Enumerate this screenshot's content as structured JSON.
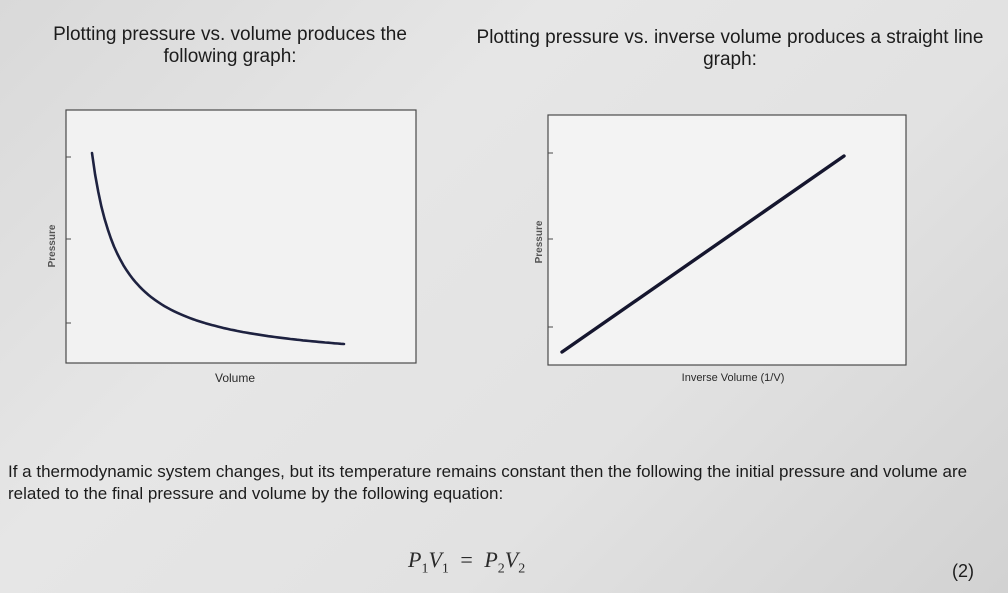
{
  "captions": {
    "left": "Plotting pressure vs. volume produces the following graph:",
    "right": "Plotting pressure vs. inverse volume produces a straight line graph:"
  },
  "chart_data": [
    {
      "type": "line",
      "xlabel": "Volume",
      "ylabel": "Pressure",
      "series": [
        {
          "x": [
            1,
            1.2,
            1.5,
            2,
            2.5,
            3,
            4,
            5,
            6,
            7,
            8,
            9,
            10
          ],
          "y": [
            10,
            8.33,
            6.67,
            5,
            4,
            3.33,
            2.5,
            2,
            1.67,
            1.43,
            1.25,
            1.11,
            1
          ]
        }
      ],
      "grid": false,
      "color": "#1e2240"
    },
    {
      "type": "line",
      "xlabel": "Inverse Volume (1/V)",
      "ylabel": "Pressure",
      "series": [
        {
          "x": [
            0.05,
            1
          ],
          "y": [
            0.05,
            1
          ]
        }
      ],
      "grid": false,
      "color": "#15162e"
    }
  ],
  "text": {
    "paragraph": "If a thermodynamic system changes, but its temperature remains constant then the following the initial pressure and volume are related to the final pressure and volume by the following equation:",
    "equation": {
      "p1": "P",
      "v1": "V",
      "p2": "P",
      "v2": "V",
      "sub1": "1",
      "sub2": "2",
      "equals": "="
    },
    "equation_number": "(2)"
  }
}
